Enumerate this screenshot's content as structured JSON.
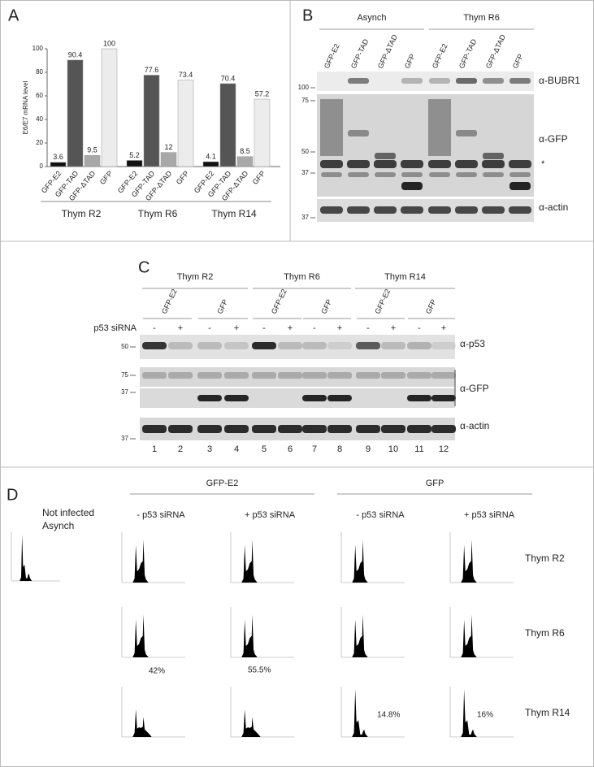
{
  "panel_a_letter": "A",
  "chart_data": {
    "type": "bar",
    "y_label": "E6/E7 mRNA level",
    "categories": [
      "GFP-E2",
      "GFP-TAD",
      "GFP-ΔTAD",
      "GFP"
    ],
    "colors": [
      "#111111",
      "#555555",
      "#a8a8a8",
      "#ececec"
    ],
    "groups": [
      {
        "name": "Thym R2",
        "values": [
          3.6,
          90.4,
          9.5,
          100
        ]
      },
      {
        "name": "Thym R6",
        "values": [
          5.2,
          77.6,
          12,
          73.4
        ]
      },
      {
        "name": "Thym R14",
        "values": [
          4.1,
          70.4,
          8.5,
          57.2
        ]
      }
    ],
    "ylim": [
      0,
      100
    ],
    "yticks": [
      0,
      20,
      40,
      60,
      80,
      100
    ]
  },
  "panel_b": {
    "letter": "B",
    "groups": [
      "Asynch",
      "Thym R6"
    ],
    "lanes": [
      "GFP-E2",
      "GFP-TAD",
      "GFP-ΔTAD",
      "GFP",
      "GFP-E2",
      "GFP-TAD",
      "GFP-ΔTAD",
      "GFP"
    ],
    "markers": [
      "100",
      "75",
      "50",
      "37",
      "37"
    ],
    "antibodies": [
      "α-BUBR1",
      "α-GFP",
      "α-actin"
    ],
    "asterisk": "*"
  },
  "panel_c": {
    "letter": "C",
    "groups": [
      "Thym R2",
      "Thym R6",
      "Thym R14"
    ],
    "constructs": [
      "GFP-E2",
      "GFP",
      "GFP-E2",
      "GFP",
      "GFP-E2",
      "GFP"
    ],
    "sirna_label": "p53 siRNA",
    "sirna": [
      "-",
      "+",
      "-",
      "+",
      "-",
      "+",
      "-",
      "+",
      "-",
      "+",
      "-",
      "+"
    ],
    "markers": [
      "50",
      "75",
      "37",
      "37"
    ],
    "antibodies": [
      "α-p53",
      "α-GFP",
      "α-actin"
    ],
    "lanes": [
      "1",
      "2",
      "3",
      "4",
      "5",
      "6",
      "7",
      "8",
      "9",
      "10",
      "11",
      "12"
    ]
  },
  "panel_d": {
    "letter": "D",
    "control": [
      "Not infected",
      "Asynch"
    ],
    "groups": [
      "GFP-E2",
      "GFP"
    ],
    "conditions": [
      "- p53 siRNA",
      "+ p53 siRNA",
      "- p53 siRNA",
      "+ p53 siRNA"
    ],
    "rows": [
      "Thym R2",
      "Thym R6",
      "Thym R14"
    ],
    "percentages": [
      "42%",
      "55.5%",
      "14.8%",
      "16%"
    ]
  }
}
